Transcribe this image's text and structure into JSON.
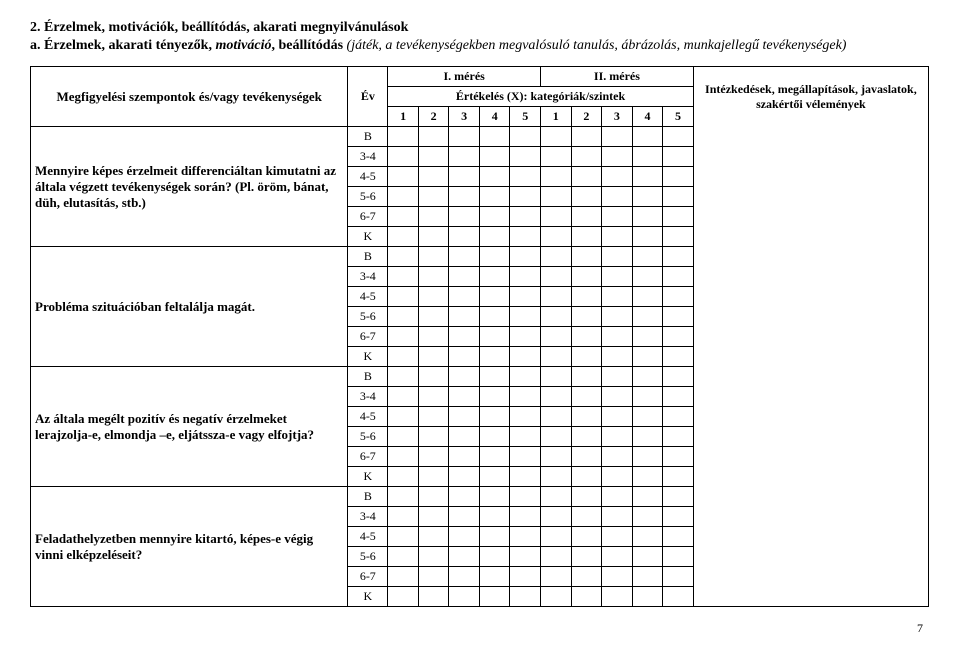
{
  "heading": "2. Érzelmek, motivációk, beállítódás, akarati megnyilvánulások",
  "subheading_prefix": "a. Érzelmek, akarati tényezők, ",
  "subheading_italic_bold": "motiváció",
  "subheading_after": ", beállítódás ",
  "subheading_italic_normal": "(játék, a tevékenységekben megvalósuló tanulás, ábrázolás, munkajellegű tevékenységek)",
  "header": {
    "col_left": "Megfigyelési szempontok és/vagy tevékenységek",
    "col_ev": "Év",
    "meres1": "I. mérés",
    "meres2": "II. mérés",
    "ertekeles": "Értékelés (X): kategóriák/szintek",
    "nums": [
      "1",
      "2",
      "3",
      "4",
      "5",
      "1",
      "2",
      "3",
      "4",
      "5"
    ],
    "col_right": "Intézkedések, megállapítások, javaslatok, szakértői vélemények"
  },
  "ev_labels": [
    "B",
    "3-4",
    "4-5",
    "5-6",
    "6-7",
    "K"
  ],
  "rows": [
    "Mennyire képes érzelmeit differenciáltan kimutatni az általa végzett tevékenységek során? (Pl. öröm, bánat, düh, elutasítás, stb.)",
    "Probléma szituációban feltalálja magát.",
    "Az általa megélt pozitív és negatív érzelmeket lerajzolja-e, elmondja –e, eljátssza-e vagy elfojtja?",
    "Feladathelyzetben mennyire kitartó, képes-e végig vinni elképzeléseit?"
  ],
  "page_number": "7"
}
